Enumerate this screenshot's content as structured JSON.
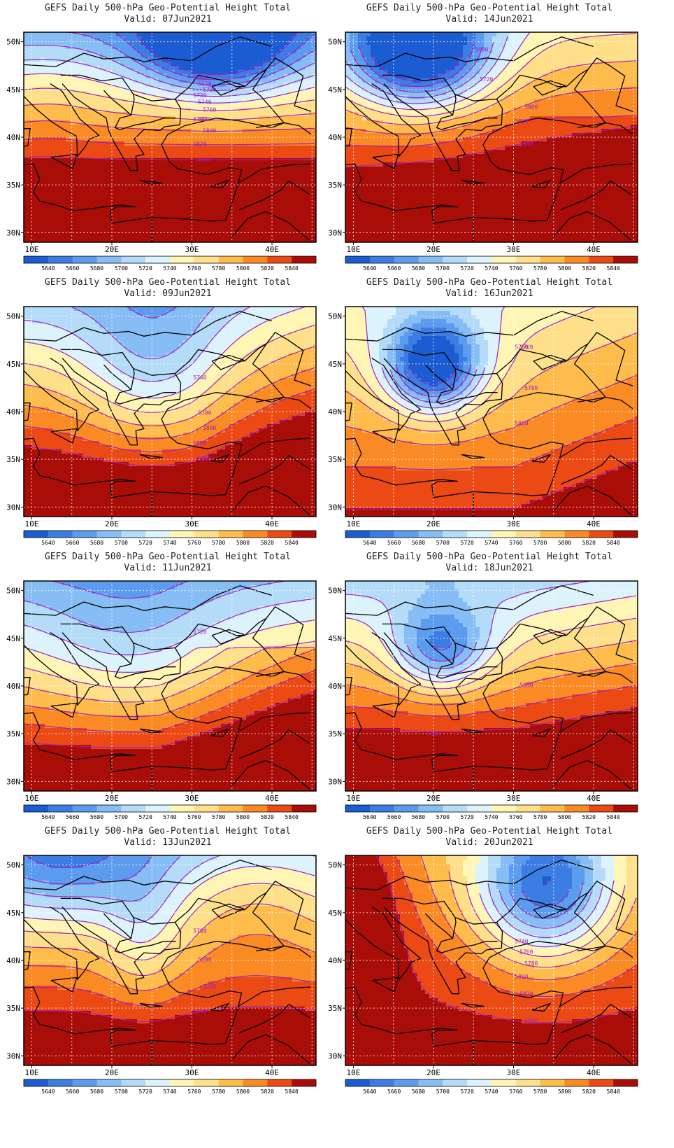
{
  "colorbar": {
    "labels": [
      "5640",
      "5660",
      "5680",
      "5700",
      "5720",
      "5740",
      "5760",
      "5780",
      "5800",
      "5820",
      "5840"
    ],
    "colors": [
      "#1c5cd2",
      "#3c7de3",
      "#5c9cee",
      "#86bdf4",
      "#b4dcf8",
      "#dcf3fc",
      "#fff5b5",
      "#fee08a",
      "#fdbc4b",
      "#f98a24",
      "#eb4a14",
      "#a90d08"
    ]
  },
  "axes": {
    "lat_ticks": [
      "50N",
      "45N",
      "40N",
      "35N",
      "30N"
    ],
    "lon_ticks": [
      "10E",
      "20E",
      "30E",
      "40E"
    ]
  },
  "panels": [
    {
      "title": "GEFS Daily 500-hPa Geo-Potential Height Total",
      "valid": "Valid: 07Jun2021",
      "pattern": "lowNE",
      "contour_labels": [
        "5660",
        "5680",
        "5700",
        "5720",
        "5740",
        "5760",
        "5780",
        "5780",
        "5800",
        "5820",
        "5840"
      ]
    },
    {
      "title": "GEFS Daily 500-hPa Geo-Potential Height Total",
      "valid": "Valid: 14Jun2021",
      "pattern": "lowNW",
      "contour_labels": [
        "5680",
        "5720",
        "5800",
        "5820",
        "5840"
      ]
    },
    {
      "title": "GEFS Daily 500-hPa Geo-Potential Height Total",
      "valid": "Valid: 09Jun2021",
      "pattern": "trough",
      "contour_labels": [
        "5740",
        "5780",
        "5800",
        "5820",
        "5840"
      ]
    },
    {
      "title": "GEFS Daily 500-hPa Geo-Potential Height Total",
      "valid": "Valid: 16Jun2021",
      "pattern": "cutoff",
      "contour_labels": [
        "5760",
        "5760",
        "5780",
        "5800"
      ]
    },
    {
      "title": "GEFS Daily 500-hPa Geo-Potential Height Total",
      "valid": "Valid: 11Jun2021",
      "pattern": "broad",
      "contour_labels": [
        "5720"
      ]
    },
    {
      "title": "GEFS Daily 500-hPa Geo-Potential Height Total",
      "valid": "Valid: 18Jun2021",
      "pattern": "cutoff2",
      "contour_labels": [
        "5640",
        "5800"
      ]
    },
    {
      "title": "GEFS Daily 500-hPa Geo-Potential Height Total",
      "valid": "Valid: 13Jun2021",
      "pattern": "ridgeE",
      "contour_labels": [
        "5780",
        "5800",
        "5820",
        "5840"
      ]
    },
    {
      "title": "GEFS Daily 500-hPa Geo-Potential Height Total",
      "valid": "Valid: 20Jun2021",
      "pattern": "ridgeW",
      "contour_labels": [
        "5740",
        "5760",
        "5780",
        "5800",
        "5820",
        "5840"
      ]
    }
  ]
}
